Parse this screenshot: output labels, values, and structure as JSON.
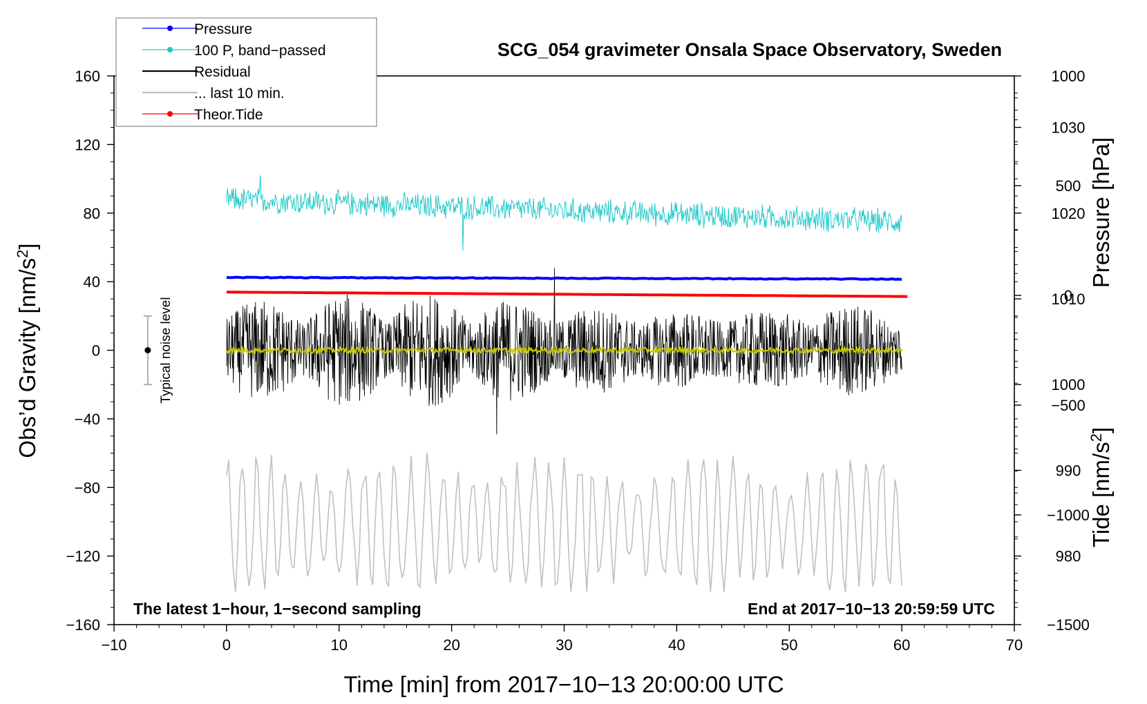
{
  "chart_data": {
    "type": "line",
    "title": "SCG_054 gravimeter Onsala Space Observatory, Sweden",
    "xlabel": "Time [min] from 2017−10−13 20:00:00 UTC",
    "ylabel": "Obs’d Gravity [nm/s²]",
    "ylabel_main": "Obs’d Gravity [nm/s",
    "ylabel_sup": "2",
    "ylabel_close": "]",
    "xlim": [
      -10,
      70
    ],
    "ylim": [
      -160,
      160
    ],
    "x_ticks": [
      {
        "value": -10,
        "label": "−10"
      },
      {
        "value": 0,
        "label": "0"
      },
      {
        "value": 10,
        "label": "10"
      },
      {
        "value": 20,
        "label": "20"
      },
      {
        "value": 30,
        "label": "30"
      },
      {
        "value": 40,
        "label": "40"
      },
      {
        "value": 50,
        "label": "50"
      },
      {
        "value": 60,
        "label": "60"
      },
      {
        "value": 70,
        "label": "70"
      }
    ],
    "y_ticks": [
      {
        "value": 160,
        "label": "160"
      },
      {
        "value": 120,
        "label": "120"
      },
      {
        "value": 80,
        "label": "80"
      },
      {
        "value": 40,
        "label": "40"
      },
      {
        "value": 0,
        "label": "0"
      },
      {
        "value": -40,
        "label": "−40"
      },
      {
        "value": -80,
        "label": "−80"
      },
      {
        "value": -120,
        "label": "−120"
      },
      {
        "value": -160,
        "label": "−160"
      }
    ],
    "pressure_axis": {
      "label": "Pressure [hPa]",
      "range": [
        972,
        1036
      ],
      "ticks": [
        {
          "value": 1030,
          "label": "1030"
        },
        {
          "value": 1020,
          "label": "1020"
        },
        {
          "value": 1010,
          "label": "1010"
        },
        {
          "value": 1000,
          "label": "1000"
        },
        {
          "value": 990,
          "label": "990"
        },
        {
          "value": 980,
          "label": "980"
        }
      ]
    },
    "tide_axis": {
      "label_main": "Tide [nm/s",
      "label_sup": "2",
      "label_close": "]",
      "range": [
        -1500,
        1000
      ],
      "ticks": [
        {
          "value": 1000,
          "label": "1000"
        },
        {
          "value": 500,
          "label": "500"
        },
        {
          "value": 0,
          "label": "0"
        },
        {
          "value": -500,
          "label": "−500"
        },
        {
          "value": -1000,
          "label": "−1000"
        },
        {
          "value": -1500,
          "label": "−1500"
        }
      ]
    },
    "series": [
      {
        "name": "Pressure",
        "color": "#0000ff",
        "axis": "pressure",
        "x_range": [
          0,
          60
        ],
        "start": 1012.5,
        "end": 1012.3,
        "note": "near-flat line ~1012.4 hPa"
      },
      {
        "name": "100 P, band−passed",
        "color": "#20c8c8",
        "axis": "gravity",
        "x_range": [
          0,
          60
        ],
        "start": 88,
        "end": 75,
        "amplitude": 7,
        "peak_max": 102,
        "peak_min": 58
      },
      {
        "name": "Residual",
        "color": "#000000",
        "axis": "gravity",
        "x_range": [
          0,
          60
        ],
        "mean": 0,
        "amplitude": 25,
        "peak_max": 48,
        "peak_min": -49
      },
      {
        "name": "... last 10 min.",
        "color": "#c0c0c0",
        "axis": "gravity",
        "x_range": [
          0,
          60
        ],
        "mean": -102,
        "amplitude": 20,
        "peak_max": -51,
        "peak_min": -141
      },
      {
        "name": "Theor.Tide",
        "color": "#ff0000",
        "axis": "tide",
        "x_range": [
          0,
          60.5
        ],
        "start": 15,
        "end": -5
      },
      {
        "name": "smoothed residual",
        "color": "#c8c800",
        "axis": "gravity",
        "x_range": [
          0,
          60
        ],
        "mean": 0,
        "amplitude": 1.5
      }
    ],
    "legend": {
      "placement": "top-left",
      "entries": [
        {
          "label": "Pressure",
          "color": "#0000ff",
          "marker": true
        },
        {
          "label": "100 P, band−passed",
          "color": "#20c8c8",
          "marker": true
        },
        {
          "label": "Residual",
          "color": "#000000",
          "marker": false
        },
        {
          "label": "... last 10 min.",
          "color": "#c0c0c0",
          "marker": false
        },
        {
          "label": "Theor.Tide",
          "color": "#ff0000",
          "marker": true
        }
      ]
    },
    "noise_level": {
      "label": "Typical noise level",
      "x": -7,
      "center": 0,
      "low": -20,
      "high": 20
    },
    "annotations": {
      "bottom_left": "The latest 1−hour, 1−second sampling",
      "bottom_right": "End at 2017−10−13 20:59:59 UTC"
    }
  }
}
